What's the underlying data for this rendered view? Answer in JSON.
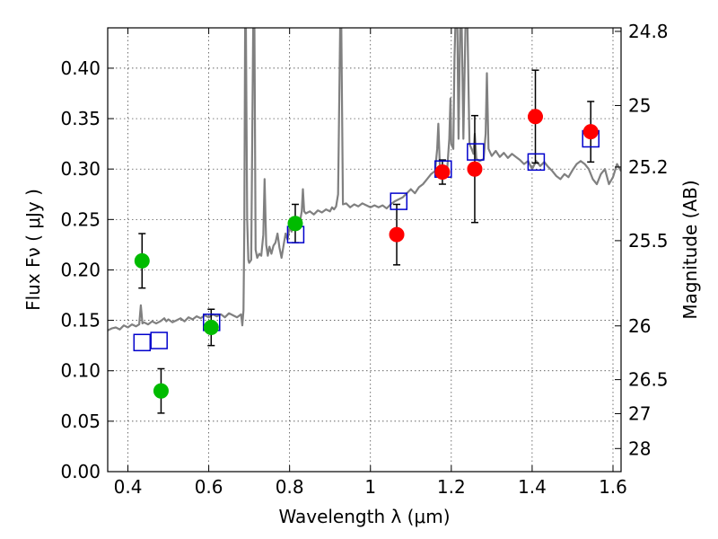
{
  "chart_data": {
    "type": "scatter",
    "title": "",
    "xlabel": "Wavelength  λ (μm)",
    "ylabel": "Flux  Fν  ( μJy )",
    "ylabel_right": "Magnitude (AB)",
    "xlim": [
      0.35,
      1.62
    ],
    "ylim": [
      0.0,
      0.44
    ],
    "grid": true,
    "x_ticks": [
      0.4,
      0.6,
      0.8,
      1.0,
      1.2,
      1.4,
      1.6
    ],
    "x_tick_labels": [
      "0.4",
      "0.6",
      "0.8",
      "1",
      "1.2",
      "1.4",
      "1.6"
    ],
    "y_ticks": [
      0.0,
      0.05,
      0.1,
      0.15,
      0.2,
      0.25,
      0.3,
      0.35,
      0.4
    ],
    "y_tick_labels": [
      "0.00",
      "0.05",
      "0.10",
      "0.15",
      "0.20",
      "0.25",
      "0.30",
      "0.35",
      "0.40"
    ],
    "right_ticks": [
      {
        "label": "24.8",
        "flux": 0.4365
      },
      {
        "label": "25",
        "flux": 0.363
      },
      {
        "label": "25.2",
        "flux": 0.302
      },
      {
        "label": "25.5",
        "flux": 0.229
      },
      {
        "label": "26",
        "flux": 0.1445
      },
      {
        "label": "26.5",
        "flux": 0.0912
      },
      {
        "label": "27",
        "flux": 0.0575
      },
      {
        "label": "28",
        "flux": 0.0229
      }
    ],
    "colors": {
      "spectrum": "#808080",
      "green": "#00bb00",
      "red": "#ff0000",
      "model": "#0000cc",
      "errorbar": "#000000"
    },
    "series": [
      {
        "name": "model spectrum",
        "kind": "line",
        "points": [
          [
            0.35,
            0.14
          ],
          [
            0.36,
            0.142
          ],
          [
            0.37,
            0.143
          ],
          [
            0.38,
            0.141
          ],
          [
            0.39,
            0.145
          ],
          [
            0.4,
            0.143
          ],
          [
            0.41,
            0.146
          ],
          [
            0.42,
            0.144
          ],
          [
            0.428,
            0.146
          ],
          [
            0.432,
            0.165
          ],
          [
            0.436,
            0.147
          ],
          [
            0.44,
            0.148
          ],
          [
            0.45,
            0.146
          ],
          [
            0.46,
            0.149
          ],
          [
            0.47,
            0.147
          ],
          [
            0.48,
            0.149
          ],
          [
            0.49,
            0.152
          ],
          [
            0.495,
            0.149
          ],
          [
            0.5,
            0.151
          ],
          [
            0.51,
            0.148
          ],
          [
            0.52,
            0.15
          ],
          [
            0.53,
            0.152
          ],
          [
            0.54,
            0.149
          ],
          [
            0.55,
            0.153
          ],
          [
            0.56,
            0.151
          ],
          [
            0.57,
            0.154
          ],
          [
            0.58,
            0.152
          ],
          [
            0.59,
            0.155
          ],
          [
            0.6,
            0.153
          ],
          [
            0.61,
            0.156
          ],
          [
            0.62,
            0.154
          ],
          [
            0.63,
            0.156
          ],
          [
            0.64,
            0.153
          ],
          [
            0.65,
            0.157
          ],
          [
            0.66,
            0.155
          ],
          [
            0.67,
            0.153
          ],
          [
            0.68,
            0.156
          ],
          [
            0.683,
            0.145
          ],
          [
            0.686,
            0.16
          ],
          [
            0.688,
            0.24
          ],
          [
            0.69,
            0.44
          ],
          [
            0.692,
            0.44
          ],
          [
            0.695,
            0.25
          ],
          [
            0.698,
            0.21
          ],
          [
            0.7,
            0.207
          ],
          [
            0.705,
            0.21
          ],
          [
            0.71,
            0.44
          ],
          [
            0.713,
            0.44
          ],
          [
            0.716,
            0.22
          ],
          [
            0.72,
            0.212
          ],
          [
            0.725,
            0.216
          ],
          [
            0.73,
            0.214
          ],
          [
            0.735,
            0.235
          ],
          [
            0.738,
            0.29
          ],
          [
            0.742,
            0.225
          ],
          [
            0.746,
            0.214
          ],
          [
            0.75,
            0.223
          ],
          [
            0.755,
            0.216
          ],
          [
            0.76,
            0.224
          ],
          [
            0.765,
            0.227
          ],
          [
            0.77,
            0.236
          ],
          [
            0.775,
            0.222
          ],
          [
            0.78,
            0.212
          ],
          [
            0.785,
            0.224
          ],
          [
            0.79,
            0.236
          ],
          [
            0.795,
            0.23
          ],
          [
            0.8,
            0.243
          ],
          [
            0.805,
            0.238
          ],
          [
            0.81,
            0.245
          ],
          [
            0.815,
            0.243
          ],
          [
            0.82,
            0.249
          ],
          [
            0.825,
            0.246
          ],
          [
            0.83,
            0.258
          ],
          [
            0.833,
            0.28
          ],
          [
            0.836,
            0.258
          ],
          [
            0.84,
            0.256
          ],
          [
            0.85,
            0.258
          ],
          [
            0.86,
            0.255
          ],
          [
            0.87,
            0.259
          ],
          [
            0.88,
            0.257
          ],
          [
            0.89,
            0.26
          ],
          [
            0.9,
            0.258
          ],
          [
            0.905,
            0.262
          ],
          [
            0.91,
            0.26
          ],
          [
            0.915,
            0.263
          ],
          [
            0.92,
            0.275
          ],
          [
            0.925,
            0.44
          ],
          [
            0.928,
            0.44
          ],
          [
            0.932,
            0.265
          ],
          [
            0.94,
            0.266
          ],
          [
            0.95,
            0.262
          ],
          [
            0.96,
            0.265
          ],
          [
            0.97,
            0.263
          ],
          [
            0.98,
            0.266
          ],
          [
            0.99,
            0.264
          ],
          [
            1.0,
            0.262
          ],
          [
            1.01,
            0.264
          ],
          [
            1.02,
            0.262
          ],
          [
            1.03,
            0.264
          ],
          [
            1.04,
            0.261
          ],
          [
            1.05,
            0.265
          ],
          [
            1.06,
            0.268
          ],
          [
            1.07,
            0.27
          ],
          [
            1.08,
            0.272
          ],
          [
            1.09,
            0.276
          ],
          [
            1.1,
            0.28
          ],
          [
            1.11,
            0.276
          ],
          [
            1.12,
            0.282
          ],
          [
            1.13,
            0.285
          ],
          [
            1.14,
            0.29
          ],
          [
            1.15,
            0.295
          ],
          [
            1.16,
            0.298
          ],
          [
            1.165,
            0.32
          ],
          [
            1.168,
            0.345
          ],
          [
            1.172,
            0.3
          ],
          [
            1.18,
            0.298
          ],
          [
            1.19,
            0.3
          ],
          [
            1.195,
            0.33
          ],
          [
            1.198,
            0.37
          ],
          [
            1.2,
            0.325
          ],
          [
            1.205,
            0.32
          ],
          [
            1.208,
            0.41
          ],
          [
            1.21,
            0.44
          ],
          [
            1.215,
            0.44
          ],
          [
            1.218,
            0.33
          ],
          [
            1.222,
            0.44
          ],
          [
            1.226,
            0.44
          ],
          [
            1.23,
            0.33
          ],
          [
            1.235,
            0.44
          ],
          [
            1.24,
            0.44
          ],
          [
            1.245,
            0.325
          ],
          [
            1.25,
            0.32
          ],
          [
            1.255,
            0.315
          ],
          [
            1.258,
            0.335
          ],
          [
            1.262,
            0.31
          ],
          [
            1.27,
            0.308
          ],
          [
            1.28,
            0.31
          ],
          [
            1.285,
            0.335
          ],
          [
            1.288,
            0.395
          ],
          [
            1.292,
            0.32
          ],
          [
            1.3,
            0.313
          ],
          [
            1.31,
            0.318
          ],
          [
            1.32,
            0.312
          ],
          [
            1.33,
            0.316
          ],
          [
            1.34,
            0.311
          ],
          [
            1.35,
            0.315
          ],
          [
            1.36,
            0.312
          ],
          [
            1.37,
            0.309
          ],
          [
            1.38,
            0.305
          ],
          [
            1.39,
            0.308
          ],
          [
            1.4,
            0.3
          ],
          [
            1.41,
            0.308
          ],
          [
            1.42,
            0.303
          ],
          [
            1.43,
            0.307
          ],
          [
            1.44,
            0.302
          ],
          [
            1.45,
            0.298
          ],
          [
            1.46,
            0.293
          ],
          [
            1.47,
            0.29
          ],
          [
            1.48,
            0.295
          ],
          [
            1.49,
            0.292
          ],
          [
            1.5,
            0.299
          ],
          [
            1.51,
            0.305
          ],
          [
            1.52,
            0.308
          ],
          [
            1.53,
            0.305
          ],
          [
            1.54,
            0.3
          ],
          [
            1.55,
            0.29
          ],
          [
            1.56,
            0.285
          ],
          [
            1.57,
            0.295
          ],
          [
            1.58,
            0.3
          ],
          [
            1.59,
            0.285
          ],
          [
            1.6,
            0.292
          ],
          [
            1.61,
            0.305
          ],
          [
            1.62,
            0.298
          ]
        ]
      },
      {
        "name": "green photometry",
        "kind": "points-with-errors",
        "marker": "circle",
        "points": [
          {
            "x": 0.435,
            "y": 0.209,
            "err": 0.027
          },
          {
            "x": 0.482,
            "y": 0.08,
            "err": 0.022
          },
          {
            "x": 0.606,
            "y": 0.143,
            "err": 0.018
          },
          {
            "x": 0.814,
            "y": 0.246,
            "err": 0.019
          }
        ]
      },
      {
        "name": "red photometry",
        "kind": "points-with-errors",
        "marker": "circle",
        "points": [
          {
            "x": 1.065,
            "y": 0.235,
            "err": 0.03
          },
          {
            "x": 1.178,
            "y": 0.297,
            "err": 0.012
          },
          {
            "x": 1.258,
            "y": 0.3,
            "err": 0.053
          },
          {
            "x": 1.408,
            "y": 0.352,
            "err": 0.046
          },
          {
            "x": 1.545,
            "y": 0.337,
            "err": 0.03
          }
        ]
      },
      {
        "name": "model photometry",
        "kind": "points",
        "marker": "square",
        "points": [
          {
            "x": 0.435,
            "y": 0.128
          },
          {
            "x": 0.477,
            "y": 0.13
          },
          {
            "x": 0.607,
            "y": 0.148
          },
          {
            "x": 0.815,
            "y": 0.235
          },
          {
            "x": 1.07,
            "y": 0.268
          },
          {
            "x": 1.18,
            "y": 0.3
          },
          {
            "x": 1.26,
            "y": 0.317
          },
          {
            "x": 1.41,
            "y": 0.307
          },
          {
            "x": 1.545,
            "y": 0.33
          }
        ]
      }
    ]
  }
}
